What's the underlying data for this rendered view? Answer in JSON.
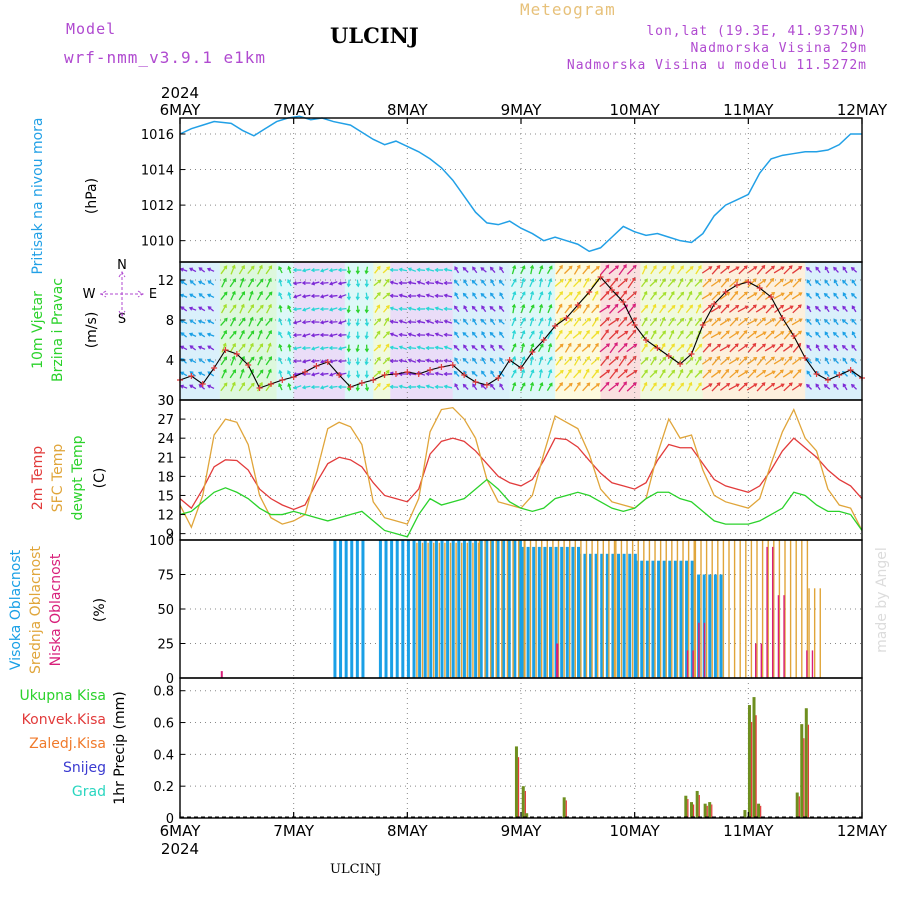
{
  "header": {
    "model_label": "Model",
    "model_name": "wrf-nmm_v3.9.1 e1km",
    "station": "ULCINJ",
    "product": "Meteogram",
    "location": "lon,lat (19.3E, 41.9375N)",
    "elevation": "Nadmorska Visina 29m",
    "model_elevation": "Nadmorska Visina u modelu 11.5272m"
  },
  "footer": {
    "station": "ULCINJ",
    "credit": "made by Angel"
  },
  "colors": {
    "pressure": "#22a0e6",
    "temp2m": "#e23b3b",
    "sfc": "#e0a53a",
    "dewpt": "#2bd22b",
    "cloud_high": "#1aa0e6",
    "cloud_mid": "#e0a53a",
    "cloud_low": "#d81f7a",
    "precip_total": "#6e8f1f",
    "precip_conv": "#e23b3b",
    "header_purple": "#b04ad0",
    "header_gold": "#e7c17a"
  },
  "chart_data": [
    {
      "id": "pressure",
      "type": "line",
      "ylabel": [
        "Pritisak na nivou mora",
        "(hPa)"
      ],
      "x_labels_top_year": "2024",
      "x_labels": [
        "6MAY",
        "7MAY",
        "8MAY",
        "9MAY",
        "10MAY",
        "11MAY",
        "12MAY"
      ],
      "x_range_days": [
        0,
        6
      ],
      "yticks": [
        1010,
        1012,
        1014,
        1016
      ],
      "ylim": [
        1008.8,
        1016.9
      ],
      "grid": true,
      "series": [
        {
          "x": [
            0,
            0.1,
            0.2,
            0.3,
            0.45,
            0.55,
            0.65,
            0.75,
            0.85,
            0.95,
            1.05,
            1.15,
            1.25,
            1.35,
            1.5,
            1.6,
            1.7,
            1.8,
            1.9,
            2.0,
            2.1,
            2.2,
            2.3,
            2.4,
            2.5,
            2.6,
            2.7,
            2.8,
            2.9,
            3.0,
            3.1,
            3.2,
            3.3,
            3.4,
            3.5,
            3.6,
            3.7,
            3.8,
            3.9,
            4.0,
            4.1,
            4.2,
            4.3,
            4.4,
            4.5,
            4.6,
            4.7,
            4.8,
            4.9,
            5.0,
            5.1,
            5.2,
            5.3,
            5.4,
            5.5,
            5.6,
            5.7,
            5.8,
            5.9,
            6.0
          ],
          "values": [
            1016.0,
            1016.3,
            1016.5,
            1016.7,
            1016.6,
            1016.2,
            1015.9,
            1016.3,
            1016.7,
            1016.9,
            1017.0,
            1016.8,
            1016.9,
            1016.7,
            1016.5,
            1016.1,
            1015.7,
            1015.4,
            1015.6,
            1015.3,
            1015.0,
            1014.6,
            1014.1,
            1013.4,
            1012.5,
            1011.6,
            1011.0,
            1010.9,
            1011.1,
            1010.7,
            1010.4,
            1010.0,
            1010.2,
            1010.0,
            1009.8,
            1009.4,
            1009.6,
            1010.2,
            1010.8,
            1010.5,
            1010.3,
            1010.4,
            1010.2,
            1010.0,
            1009.9,
            1010.4,
            1011.4,
            1012.0,
            1012.3,
            1012.6,
            1013.8,
            1014.6,
            1014.8,
            1014.9,
            1015.0,
            1015.0,
            1015.1,
            1015.4,
            1016.0,
            1016.0
          ]
        }
      ]
    },
    {
      "id": "wind",
      "type": "line",
      "ylabel": [
        "10m Vjetar",
        "Brzina i Pravac",
        "(m/s)"
      ],
      "compass": {
        "n": "N",
        "s": "S",
        "e": "E",
        "w": "W"
      },
      "yticks": [
        0,
        4,
        8,
        12
      ],
      "ylim": [
        0,
        13.8
      ],
      "grid": true,
      "speed_series": {
        "x": [
          0,
          0.1,
          0.2,
          0.3,
          0.4,
          0.5,
          0.6,
          0.7,
          0.8,
          0.9,
          1.0,
          1.1,
          1.2,
          1.3,
          1.4,
          1.5,
          1.6,
          1.7,
          1.8,
          1.9,
          2.0,
          2.1,
          2.2,
          2.3,
          2.4,
          2.5,
          2.6,
          2.7,
          2.8,
          2.9,
          3.0,
          3.1,
          3.2,
          3.3,
          3.4,
          3.5,
          3.6,
          3.7,
          3.8,
          3.9,
          4.0,
          4.1,
          4.2,
          4.3,
          4.4,
          4.5,
          4.6,
          4.7,
          4.8,
          4.9,
          5.0,
          5.1,
          5.2,
          5.3,
          5.4,
          5.5,
          5.6,
          5.7,
          5.8,
          5.9,
          6.0
        ],
        "values": [
          2.0,
          2.4,
          1.6,
          3.2,
          5.0,
          4.6,
          3.5,
          1.2,
          1.6,
          2.0,
          2.3,
          2.8,
          3.4,
          3.8,
          2.5,
          1.3,
          1.7,
          2.0,
          2.5,
          2.6,
          2.8,
          2.6,
          3.0,
          3.3,
          3.5,
          2.5,
          1.8,
          1.5,
          2.2,
          4.0,
          3.2,
          4.8,
          6.0,
          7.4,
          8.2,
          9.5,
          10.8,
          12.3,
          11.0,
          9.8,
          7.5,
          6.0,
          5.2,
          4.4,
          3.6,
          4.6,
          7.5,
          9.6,
          10.8,
          11.5,
          11.8,
          11.2,
          10.3,
          8.2,
          6.4,
          4.2,
          2.6,
          2.0,
          2.5,
          3.0,
          2.2
        ]
      },
      "band_colors": [
        "#d81f7a",
        "#1aa0e6",
        "#7d2ad6",
        "#2ad6d6",
        "#2bd22b",
        "#a4e02b",
        "#f0e02b",
        "#f0a02b",
        "#e23b3b"
      ],
      "bands": [
        {
          "x0": 0.0,
          "x1": 0.35,
          "dir": 120,
          "speed": 3,
          "c": 1
        },
        {
          "x0": 0.35,
          "x1": 0.85,
          "dir": 210,
          "speed": 6,
          "c": 4
        },
        {
          "x0": 0.85,
          "x1": 1.0,
          "dir": 160,
          "speed": 3,
          "c": 3
        },
        {
          "x0": 1.0,
          "x1": 1.45,
          "dir": 80,
          "speed": 4,
          "c": 2
        },
        {
          "x0": 1.45,
          "x1": 1.7,
          "dir": 0,
          "speed": 3,
          "c": 3
        },
        {
          "x0": 1.7,
          "x1": 1.85,
          "dir": 220,
          "speed": 5,
          "c": 5
        },
        {
          "x0": 1.85,
          "x1": 2.4,
          "dir": 100,
          "speed": 4,
          "c": 2
        },
        {
          "x0": 2.4,
          "x1": 2.9,
          "dir": 140,
          "speed": 3,
          "c": 1
        },
        {
          "x0": 2.9,
          "x1": 3.3,
          "dir": 200,
          "speed": 5,
          "c": 3
        },
        {
          "x0": 3.3,
          "x1": 3.7,
          "dir": 220,
          "speed": 7,
          "c": 6
        },
        {
          "x0": 3.7,
          "x1": 4.05,
          "dir": 225,
          "speed": 9,
          "c": 8
        },
        {
          "x0": 4.05,
          "x1": 4.6,
          "dir": 215,
          "speed": 6,
          "c": 5
        },
        {
          "x0": 4.6,
          "x1": 5.5,
          "dir": 230,
          "speed": 8,
          "c": 7
        },
        {
          "x0": 5.5,
          "x1": 6.0,
          "dir": 140,
          "speed": 3,
          "c": 1
        }
      ]
    },
    {
      "id": "temperature",
      "type": "line",
      "ylabel": [
        "2m Temp",
        "SFC Temp",
        "dewpt Temp",
        "(C)"
      ],
      "yticks": [
        9,
        12,
        15,
        18,
        21,
        24,
        27,
        30
      ],
      "ylim": [
        8,
        30
      ],
      "grid": true,
      "x": [
        0,
        0.1,
        0.2,
        0.3,
        0.4,
        0.5,
        0.6,
        0.7,
        0.8,
        0.9,
        1.0,
        1.1,
        1.2,
        1.3,
        1.4,
        1.5,
        1.6,
        1.7,
        1.8,
        1.9,
        2.0,
        2.1,
        2.2,
        2.3,
        2.4,
        2.5,
        2.6,
        2.7,
        2.8,
        2.9,
        3.0,
        3.1,
        3.2,
        3.3,
        3.4,
        3.5,
        3.6,
        3.7,
        3.8,
        3.9,
        4.0,
        4.1,
        4.2,
        4.3,
        4.4,
        4.5,
        4.6,
        4.7,
        4.8,
        4.9,
        5.0,
        5.1,
        5.2,
        5.3,
        5.4,
        5.5,
        5.6,
        5.7,
        5.8,
        5.9,
        6.0
      ],
      "series": [
        {
          "name": "2m Temp",
          "values": [
            14.5,
            13.0,
            16.0,
            19.5,
            20.6,
            20.5,
            19.0,
            16.0,
            14.5,
            13.5,
            12.8,
            13.5,
            17.0,
            20.0,
            21.0,
            20.6,
            19.5,
            17.0,
            15.0,
            14.5,
            14.0,
            16.0,
            21.5,
            23.5,
            24.0,
            23.5,
            22.0,
            20.0,
            18.0,
            17.0,
            16.5,
            17.5,
            20.5,
            24.0,
            23.8,
            22.6,
            20.5,
            18.5,
            17.0,
            16.5,
            16.0,
            17.0,
            20.5,
            23.0,
            22.5,
            22.5,
            20.0,
            17.5,
            16.5,
            16.0,
            15.5,
            16.5,
            19.0,
            22.0,
            24.0,
            22.5,
            21.0,
            19.0,
            17.5,
            16.5,
            14.5
          ]
        },
        {
          "name": "SFC Temp",
          "values": [
            13.5,
            10.0,
            15.0,
            24.5,
            27.0,
            26.5,
            23.0,
            15.0,
            11.5,
            10.5,
            11.0,
            12.0,
            18.5,
            25.5,
            26.5,
            25.8,
            23.0,
            14.0,
            11.5,
            11.0,
            10.5,
            14.5,
            25.0,
            28.5,
            28.8,
            27.0,
            24.0,
            17.5,
            14.0,
            13.5,
            13.0,
            15.0,
            21.5,
            27.5,
            26.5,
            25.5,
            21.5,
            16.0,
            14.0,
            13.5,
            13.0,
            14.5,
            21.5,
            27.0,
            24.0,
            24.5,
            19.0,
            15.0,
            14.0,
            13.5,
            13.0,
            14.5,
            20.0,
            25.0,
            28.5,
            24.0,
            22.0,
            16.0,
            13.5,
            13.0,
            9.5
          ]
        },
        {
          "name": "dewpt Temp",
          "values": [
            12.0,
            12.5,
            14.0,
            15.5,
            16.2,
            15.5,
            14.5,
            13.0,
            12.0,
            12.0,
            12.5,
            12.0,
            11.5,
            11.0,
            11.5,
            12.0,
            12.5,
            11.0,
            9.5,
            9.0,
            8.5,
            12.0,
            14.5,
            13.5,
            14.0,
            14.5,
            16.0,
            17.5,
            16.0,
            14.0,
            13.0,
            12.5,
            13.0,
            14.5,
            15.0,
            15.5,
            15.0,
            14.0,
            13.0,
            12.5,
            13.0,
            14.5,
            15.5,
            15.5,
            14.5,
            14.0,
            12.5,
            11.0,
            10.5,
            10.5,
            10.5,
            11.0,
            12.0,
            13.0,
            15.5,
            15.0,
            13.5,
            12.5,
            12.5,
            12.0,
            9.5
          ]
        }
      ]
    },
    {
      "id": "clouds",
      "type": "bar",
      "ylabel": [
        "Visoka Oblacnost",
        "Srednja Oblacnost",
        "Niska Oblacnost",
        "(%)"
      ],
      "yticks": [
        0,
        25,
        50,
        75,
        100
      ],
      "ylim": [
        0,
        100
      ],
      "grid": true,
      "high": [
        [
          1.35,
          1.6,
          100
        ],
        [
          1.6,
          1.62,
          100
        ],
        [
          1.75,
          3.0,
          100
        ],
        [
          3.0,
          3.5,
          95
        ],
        [
          3.5,
          4.0,
          90
        ],
        [
          4.0,
          4.5,
          85
        ],
        [
          4.5,
          4.75,
          75
        ]
      ],
      "mid": [
        [
          2.05,
          2.6,
          98
        ],
        [
          2.6,
          3.0,
          100
        ],
        [
          3.0,
          3.8,
          100
        ],
        [
          3.8,
          4.5,
          100
        ],
        [
          4.5,
          5.5,
          100
        ],
        [
          5.5,
          5.6,
          65
        ]
      ],
      "low": [
        [
          0.35,
          0.36,
          5
        ],
        [
          3.3,
          3.32,
          25
        ],
        [
          4.45,
          4.5,
          20
        ],
        [
          4.55,
          4.62,
          40
        ],
        [
          5.05,
          5.1,
          25
        ],
        [
          5.15,
          5.2,
          95
        ],
        [
          5.25,
          5.3,
          60
        ],
        [
          5.5,
          5.55,
          20
        ]
      ]
    },
    {
      "id": "precip",
      "type": "bar",
      "ylabel": [
        "1hr Precip (mm)"
      ],
      "legend": [
        "Ukupna Kisa",
        "Konvek.Kisa",
        "Zaledj.Kisa",
        "Snijeg",
        "Grad"
      ],
      "legend_colors": [
        "#2bd22b",
        "#e23b3b",
        "#f07a2b",
        "#3a3ad0",
        "#2ad6c0"
      ],
      "yticks": [
        0,
        0.2,
        0.4,
        0.6,
        0.8
      ],
      "ylim": [
        0,
        0.88
      ],
      "grid": true,
      "x_labels_bottom_year": "2024",
      "bars": [
        [
          2.96,
          0.45
        ],
        [
          3.02,
          0.2
        ],
        [
          3.05,
          0.03
        ],
        [
          3.38,
          0.13
        ],
        [
          4.45,
          0.14
        ],
        [
          4.5,
          0.1
        ],
        [
          4.55,
          0.17
        ],
        [
          4.62,
          0.09
        ],
        [
          4.66,
          0.1
        ],
        [
          4.97,
          0.05
        ],
        [
          5.01,
          0.71
        ],
        [
          5.05,
          0.76
        ],
        [
          5.09,
          0.09
        ],
        [
          5.43,
          0.16
        ],
        [
          5.47,
          0.59
        ],
        [
          5.51,
          0.69
        ],
        [
          5.55,
          0.0
        ]
      ]
    }
  ]
}
